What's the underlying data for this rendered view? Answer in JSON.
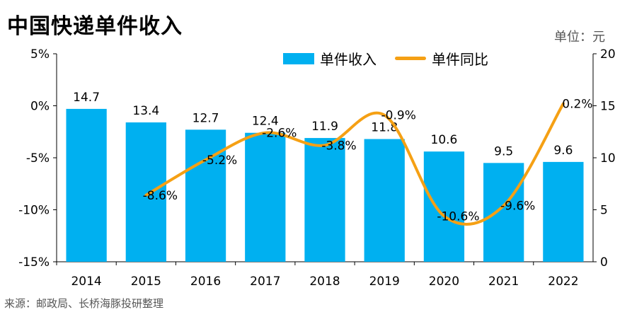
{
  "header": {
    "title": "中国快递单件收入",
    "unit": "单位：元"
  },
  "footer": {
    "source": "来源：邮政局、长桥海豚投研整理"
  },
  "colors": {
    "bar": "#00B0F0",
    "line": "#F5A014",
    "axis": "#000000",
    "grid": "#bfbfbf"
  },
  "chart_data": {
    "type": "bar",
    "categories": [
      "2014",
      "2015",
      "2016",
      "2017",
      "2018",
      "2019",
      "2020",
      "2021",
      "2022"
    ],
    "series": [
      {
        "name": "单件收入",
        "type": "bar",
        "axis": "right",
        "values": [
          14.7,
          13.4,
          12.7,
          12.4,
          11.9,
          11.8,
          10.6,
          9.5,
          9.6
        ],
        "labels": [
          "14.7",
          "13.4",
          "12.7",
          "12.4",
          "11.9",
          "11.8",
          "10.6",
          "9.5",
          "9.6"
        ]
      },
      {
        "name": "单件同比",
        "type": "line",
        "axis": "left",
        "smooth": true,
        "values": [
          null,
          -8.6,
          -5.2,
          -2.6,
          -3.8,
          -0.9,
          -10.6,
          -9.6,
          0.2
        ],
        "labels": [
          "",
          "-8.6%",
          "-5.2%",
          "-2.6%",
          "-3.8%",
          "-0.9%",
          "-10.6%",
          "-9.6%",
          "0.2%"
        ]
      }
    ],
    "left_axis": {
      "min": -15,
      "max": 5,
      "ticks": [
        "5%",
        "0%",
        "-5%",
        "-10%",
        "-15%"
      ]
    },
    "right_axis": {
      "min": 0,
      "max": 20,
      "ticks": [
        "20",
        "15",
        "10",
        "5",
        "0"
      ]
    },
    "legend": "top-center",
    "grid": false
  }
}
